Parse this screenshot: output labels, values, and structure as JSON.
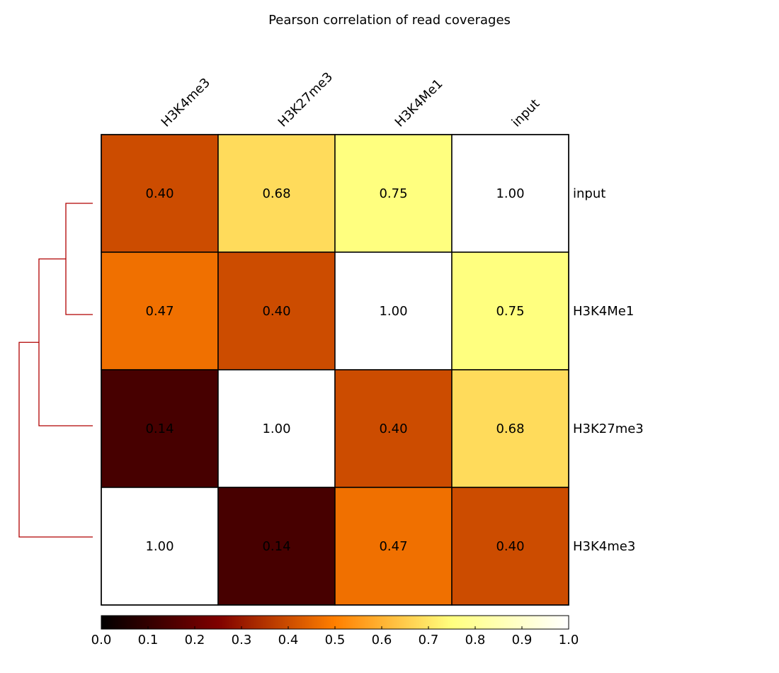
{
  "chart_data": {
    "type": "heatmap",
    "title": "Pearson correlation of read coverages",
    "columns": [
      "H3K4me3",
      "H3K27me3",
      "H3K4Me1",
      "input"
    ],
    "rows": [
      "input",
      "H3K4Me1",
      "H3K27me3",
      "H3K4me3"
    ],
    "values": [
      [
        0.4,
        0.68,
        0.75,
        1.0
      ],
      [
        0.47,
        0.4,
        1.0,
        0.75
      ],
      [
        0.14,
        1.0,
        0.4,
        0.68
      ],
      [
        1.0,
        0.14,
        0.47,
        0.4
      ]
    ],
    "value_labels": [
      [
        "0.40",
        "0.68",
        "0.75",
        "1.00"
      ],
      [
        "0.47",
        "0.40",
        "1.00",
        "0.75"
      ],
      [
        "0.14",
        "1.00",
        "0.40",
        "0.68"
      ],
      [
        "1.00",
        "0.14",
        "0.47",
        "0.40"
      ]
    ],
    "colormap": "afmhot",
    "colorbar": {
      "range": [
        0.0,
        1.0
      ],
      "ticks": [
        "0.0",
        "0.1",
        "0.2",
        "0.3",
        "0.4",
        "0.5",
        "0.6",
        "0.7",
        "0.8",
        "0.9",
        "1.0"
      ],
      "stops": [
        {
          "v": 0.0,
          "color": "#000000"
        },
        {
          "v": 0.25,
          "color": "#7f0000"
        },
        {
          "v": 0.5,
          "color": "#ff7f00"
        },
        {
          "v": 0.75,
          "color": "#ffff7f"
        },
        {
          "v": 1.0,
          "color": "#ffffff"
        }
      ]
    },
    "dendrogram": {
      "side": "left",
      "color": "#b00000",
      "merges": [
        {
          "a": "input",
          "b": "H3K4Me1"
        },
        {
          "a": "input+H3K4Me1",
          "b": "H3K27me3"
        },
        {
          "a": "input+H3K4Me1+H3K27me3",
          "b": "H3K4me3"
        }
      ]
    }
  }
}
